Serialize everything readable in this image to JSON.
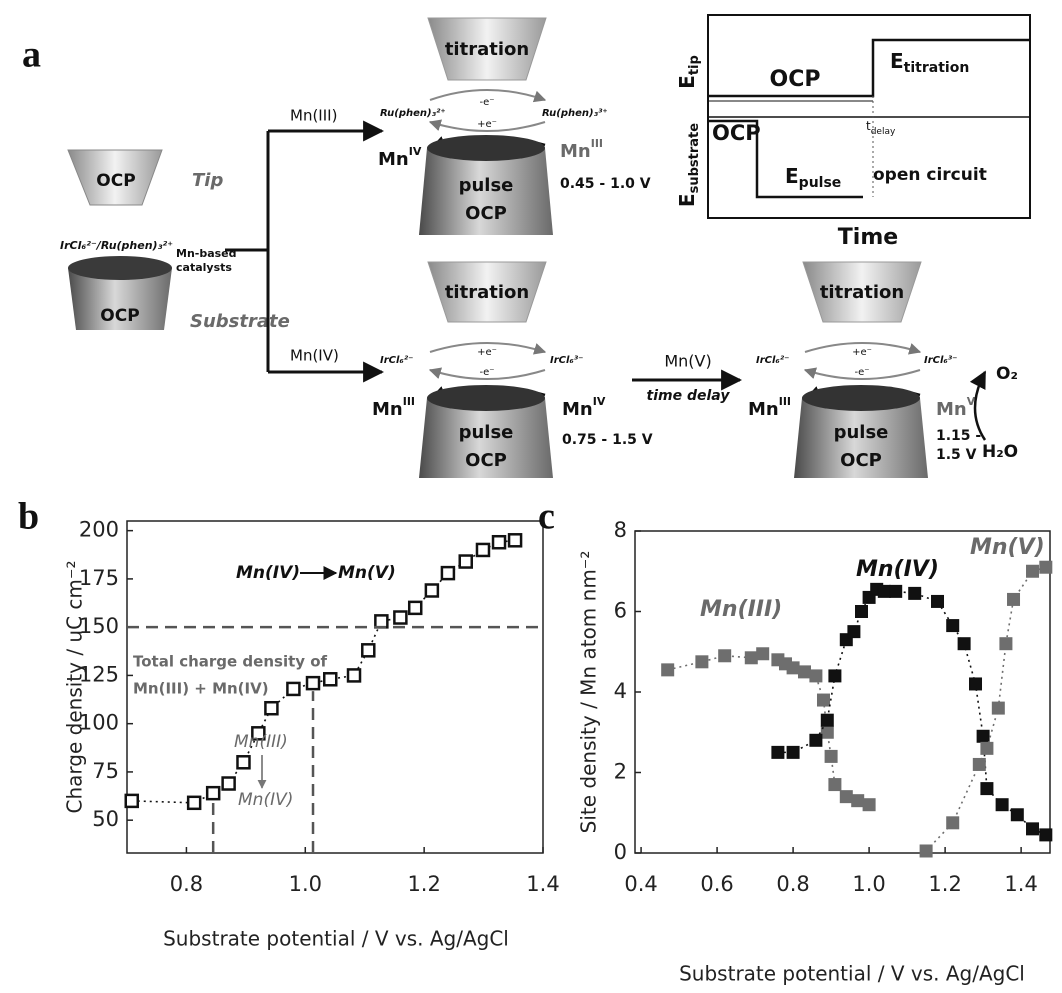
{
  "panel_a": {
    "label": "a",
    "tip_state": "OCP",
    "tip_name": "Tip",
    "mediator": "IrCl₆²⁻/Ru(phen)₃²⁺",
    "catalyst": [
      "Mn-based",
      "catalysts"
    ],
    "substrate_state": "OCP",
    "substrate_name": "Substrate",
    "branch_upper": "Mn(III)",
    "branch_lower": "Mn(IV)",
    "upper": {
      "tip": "titration",
      "left_couple": "Ru(phen)₃²⁺",
      "right_couple": "Ru(phen)₃³⁺",
      "top_e": "-e⁻",
      "bottom_e": "+e⁻",
      "left_mn": {
        "base": "Mn",
        "sup": "IV"
      },
      "right_mn": {
        "base": "Mn",
        "sup": "III"
      },
      "pulse": "pulse",
      "ocp": "OCP",
      "range": "0.45 - 1.0 V"
    },
    "lower": {
      "tip": "titration",
      "left_couple": "IrCl₆²⁻",
      "right_couple": "IrCl₆³⁻",
      "top_e": "+e⁻",
      "bottom_e": "-e⁻",
      "left_mn": {
        "base": "Mn",
        "sup": "III"
      },
      "right_mn": {
        "base": "Mn",
        "sup": "IV"
      },
      "pulse": "pulse",
      "ocp": "OCP",
      "range": "0.75 - 1.5 V"
    },
    "transition": {
      "label": "Mn(V)",
      "note": "time delay"
    },
    "final": {
      "tip": "titration",
      "left_couple": "IrCl₆²⁻",
      "right_couple": "IrCl₆³⁻",
      "top_e": "+e⁻",
      "bottom_e": "-e⁻",
      "left_mn": {
        "base": "Mn",
        "sup": "III"
      },
      "right_mn": {
        "base": "Mn",
        "sup": "V"
      },
      "pulse": "pulse",
      "ocp": "OCP",
      "range": [
        "1.15 -",
        "1.5 V"
      ],
      "product": "O₂",
      "reactant": "H₂O"
    },
    "timing": {
      "y_top": {
        "base": "E",
        "sub": "tip"
      },
      "y_bottom": {
        "base": "E",
        "sub": "substrate"
      },
      "tip_ocp": "OCP",
      "tip_titration": {
        "base": "E",
        "sub": "titration"
      },
      "sub_ocp": "OCP",
      "delay": {
        "base": "t",
        "sub": "delay"
      },
      "pulse": {
        "base": "E",
        "sub": "pulse"
      },
      "open": "open circuit",
      "x": "Time"
    }
  },
  "chart_data": [
    {
      "type": "scatter",
      "label": "b",
      "xlabel": "Substrate potential / V vs. Ag/AgCl",
      "ylabel": "Charge density / uC cm⁻²",
      "x": [
        0.708,
        0.813,
        0.845,
        0.871,
        0.896,
        0.921,
        0.943,
        0.98,
        1.013,
        1.042,
        1.082,
        1.106,
        1.128,
        1.16,
        1.185,
        1.213,
        1.24,
        1.27,
        1.299,
        1.326,
        1.353
      ],
      "values": [
        60,
        59,
        64,
        69,
        80,
        95,
        108,
        118,
        121,
        123,
        125,
        138,
        153,
        155,
        160,
        169,
        178,
        184,
        190,
        194,
        195
      ],
      "color": "#111111",
      "xlim": [
        0.7,
        1.4
      ],
      "xticks": [
        0.8,
        {
          "value": 1,
          "label": "1.0"
        },
        1.2,
        1.4
      ],
      "ylim": [
        33,
        205
      ],
      "yticks": [
        50,
        75,
        100,
        125,
        150,
        175,
        200
      ],
      "hline": 150,
      "vlines": [
        0.845,
        1.013
      ],
      "annotations": [
        "Total charge density of",
        "Mn(III) + Mn(IV)",
        "Mn(IV)",
        "Mn(V)",
        "Mn(III)",
        "Mn(IV)"
      ]
    },
    {
      "type": "scatter",
      "label": "c",
      "xlabel": "Substrate potential / V vs. Ag/AgCl",
      "ylabel": "Site density / Mn atom nm⁻²",
      "series": [
        {
          "name": "Mn(III)",
          "color": "#6e6e6e",
          "x": [
            0.47,
            0.56,
            0.62,
            0.69,
            0.72,
            0.76,
            0.78,
            0.8,
            0.83,
            0.86,
            0.88,
            0.89,
            0.9,
            0.91,
            0.94,
            0.97,
            1.0
          ],
          "values": [
            4.55,
            4.75,
            4.9,
            4.85,
            4.95,
            4.8,
            4.7,
            4.6,
            4.5,
            4.4,
            3.8,
            3.0,
            2.4,
            1.7,
            1.4,
            1.3,
            1.2
          ]
        },
        {
          "name": "Mn(IV)",
          "color": "#111111",
          "x": [
            0.76,
            0.8,
            0.86,
            0.89,
            0.91,
            0.94,
            0.96,
            0.98,
            1.0,
            1.02,
            1.04,
            1.07,
            1.12,
            1.18,
            1.22,
            1.25,
            1.28,
            1.3,
            1.31,
            1.35,
            1.39,
            1.43,
            1.465
          ],
          "values": [
            2.5,
            2.5,
            2.8,
            3.3,
            4.4,
            5.3,
            5.5,
            6.0,
            6.35,
            6.55,
            6.5,
            6.5,
            6.45,
            6.25,
            5.65,
            5.2,
            4.2,
            2.9,
            1.6,
            1.2,
            0.95,
            0.6,
            0.45
          ]
        },
        {
          "name": "Mn(V)",
          "color": "#6e6e6e",
          "x": [
            1.15,
            1.22,
            1.29,
            1.31,
            1.34,
            1.36,
            1.38,
            1.43,
            1.465
          ],
          "values": [
            0.05,
            0.75,
            2.2,
            2.6,
            3.6,
            5.2,
            6.3,
            7.0,
            7.1
          ]
        }
      ],
      "xlim": [
        0.384,
        1.476
      ],
      "xticks": [
        0.4,
        0.6,
        0.8,
        {
          "value": 1,
          "label": "1.0"
        },
        1.2,
        1.4
      ],
      "ylim": [
        0,
        8
      ],
      "yticks": [
        0,
        2,
        4,
        6,
        8
      ]
    }
  ]
}
